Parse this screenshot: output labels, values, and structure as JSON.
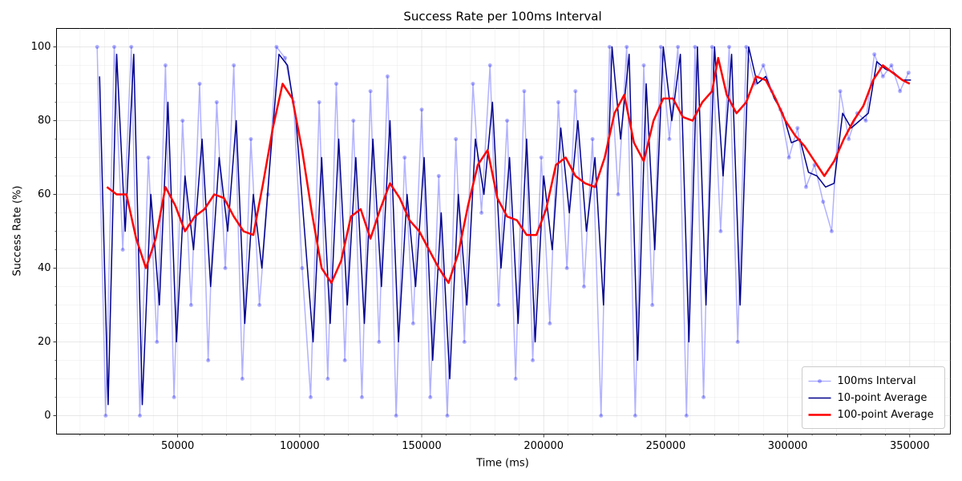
{
  "chart_data": {
    "type": "line",
    "title": "Success Rate per 100ms Interval",
    "x_label": "Time (ms)",
    "y_label": "Success Rate (%)",
    "xlim": [
      350,
      366650
    ],
    "ylim": [
      -5,
      105
    ],
    "xticks": [
      50000,
      100000,
      150000,
      200000,
      250000,
      300000,
      350000
    ],
    "yticks": [
      0,
      20,
      40,
      60,
      80,
      100
    ],
    "xminorticks": [
      10000,
      20000,
      30000,
      40000,
      60000,
      70000,
      80000,
      90000,
      110000,
      120000,
      130000,
      140000,
      160000,
      170000,
      180000,
      190000,
      210000,
      220000,
      230000,
      240000,
      260000,
      270000,
      280000,
      290000,
      310000,
      320000,
      330000,
      340000,
      360000
    ],
    "yminorticks": [
      5,
      10,
      15,
      25,
      30,
      35,
      45,
      50,
      55,
      65,
      70,
      75,
      85,
      90,
      95
    ],
    "grid": true,
    "legend_position": "lower right",
    "series": [
      {
        "name": "100ms Interval",
        "color": "#0000ff",
        "opacity": 0.3,
        "marker": true,
        "x": [
          17000,
          20500,
          24000,
          27500,
          31000,
          34500,
          38000,
          41500,
          45000,
          48500,
          52000,
          55500,
          59000,
          62500,
          66000,
          69500,
          73000,
          76500,
          80000,
          83500,
          87000,
          90500,
          94000,
          97500,
          101000,
          104500,
          108000,
          111500,
          115000,
          118500,
          122000,
          125500,
          129000,
          132500,
          136000,
          139500,
          143000,
          146500,
          150000,
          153500,
          157000,
          160500,
          164000,
          167500,
          171000,
          174500,
          178000,
          181500,
          185000,
          188500,
          192000,
          195500,
          199000,
          202500,
          206000,
          209500,
          213000,
          216500,
          220000,
          223500,
          227000,
          230500,
          234000,
          237500,
          241000,
          244500,
          248000,
          251500,
          255000,
          258500,
          262000,
          265500,
          269000,
          272500,
          276000,
          279500,
          283000,
          286500,
          290000,
          293500,
          297000,
          300500,
          304000,
          307500,
          311000,
          314500,
          318000,
          321500,
          325000,
          328500,
          332000,
          335500,
          339000,
          342500,
          346000,
          349500
        ],
        "values": [
          100,
          0,
          100,
          45,
          100,
          0,
          70,
          20,
          95,
          5,
          80,
          30,
          90,
          15,
          85,
          40,
          95,
          10,
          75,
          30,
          60,
          100,
          97,
          85,
          40,
          5,
          85,
          10,
          90,
          15,
          80,
          5,
          88,
          20,
          92,
          0,
          70,
          25,
          83,
          5,
          65,
          0,
          75,
          20,
          90,
          55,
          95,
          30,
          80,
          10,
          88,
          15,
          70,
          25,
          85,
          40,
          88,
          35,
          75,
          0,
          100,
          60,
          100,
          0,
          95,
          30,
          100,
          75,
          100,
          0,
          100,
          5,
          100,
          50,
          100,
          20,
          100,
          90,
          95,
          88,
          83,
          70,
          78,
          62,
          68,
          58,
          50,
          88,
          75,
          82,
          80,
          98,
          92,
          95,
          88,
          93
        ]
      },
      {
        "name": "10-point Average",
        "color": "#00008b",
        "opacity": 1,
        "marker": false,
        "x": [
          18000,
          21500,
          25000,
          28500,
          32000,
          35500,
          39000,
          42500,
          46000,
          49500,
          53000,
          56500,
          60000,
          63500,
          67000,
          70500,
          74000,
          77500,
          81000,
          84500,
          88000,
          91500,
          95000,
          98500,
          102000,
          105500,
          109000,
          112500,
          116000,
          119500,
          123000,
          126500,
          130000,
          133500,
          137000,
          140500,
          144000,
          147500,
          151000,
          154500,
          158000,
          161500,
          165000,
          168500,
          172000,
          175500,
          179000,
          182500,
          186000,
          189500,
          193000,
          196500,
          200000,
          203500,
          207000,
          210500,
          214000,
          217500,
          221000,
          224500,
          228000,
          231500,
          235000,
          238500,
          242000,
          245500,
          249000,
          252500,
          256000,
          259500,
          263000,
          266500,
          270000,
          273500,
          277000,
          280500,
          284000,
          287500,
          291000,
          294500,
          298000,
          301500,
          305000,
          308500,
          312000,
          315500,
          319000,
          322500,
          326000,
          329500,
          333000,
          336500,
          340000,
          343500,
          347000,
          350500
        ],
        "values": [
          92,
          3,
          98,
          50,
          98,
          3,
          60,
          30,
          85,
          20,
          65,
          45,
          75,
          35,
          70,
          50,
          80,
          25,
          60,
          40,
          70,
          98,
          95,
          80,
          50,
          20,
          70,
          25,
          75,
          30,
          70,
          25,
          75,
          35,
          80,
          20,
          60,
          35,
          70,
          15,
          55,
          10,
          60,
          30,
          75,
          60,
          85,
          40,
          70,
          25,
          75,
          20,
          65,
          45,
          78,
          55,
          80,
          50,
          70,
          30,
          100,
          75,
          98,
          15,
          90,
          45,
          100,
          80,
          98,
          20,
          100,
          30,
          100,
          65,
          98,
          30,
          100,
          90,
          92,
          86,
          82,
          74,
          75,
          66,
          65,
          62,
          63,
          82,
          78,
          80,
          82,
          96,
          94,
          93,
          91,
          91
        ]
      },
      {
        "name": "100-point Average",
        "color": "#ff0000",
        "opacity": 1,
        "marker": false,
        "width": 2.5,
        "x": [
          21000,
          25000,
          29000,
          33000,
          37000,
          41000,
          45000,
          49000,
          53000,
          57000,
          61000,
          65000,
          69000,
          73000,
          77000,
          81000,
          85000,
          89000,
          93000,
          97000,
          101000,
          105000,
          109000,
          113000,
          117000,
          121000,
          125000,
          129000,
          133000,
          137000,
          141000,
          145000,
          149000,
          153000,
          157000,
          161000,
          165000,
          169000,
          173000,
          177000,
          181000,
          185000,
          189000,
          193000,
          197000,
          201000,
          205000,
          209000,
          213000,
          217000,
          221000,
          225000,
          229000,
          233000,
          237000,
          241000,
          245000,
          249000,
          253000,
          257000,
          261000,
          265000,
          269000,
          271500,
          275000,
          279000,
          283000,
          287000,
          291000,
          295000,
          299000,
          303000,
          307000,
          311000,
          315000,
          319000,
          323000,
          327000,
          331000,
          335000,
          339000,
          343000,
          347000,
          350000
        ],
        "values": [
          62,
          60,
          60,
          48,
          40,
          48,
          62,
          57,
          50,
          54,
          56,
          60,
          59,
          54,
          50,
          49,
          63,
          78,
          90,
          86,
          72,
          55,
          40,
          36,
          42,
          54,
          56,
          48,
          56,
          63,
          59,
          53,
          50,
          45,
          40,
          36,
          44,
          57,
          68,
          72,
          59,
          54,
          53,
          49,
          49,
          56,
          68,
          70,
          65,
          63,
          62,
          70,
          82,
          87,
          74,
          69,
          80,
          86,
          86,
          81,
          80,
          85,
          88,
          97,
          87,
          82,
          85,
          92,
          91,
          86,
          80,
          76,
          73,
          69,
          65,
          69,
          75,
          80,
          84,
          91,
          95,
          93,
          91,
          90
        ]
      }
    ]
  }
}
